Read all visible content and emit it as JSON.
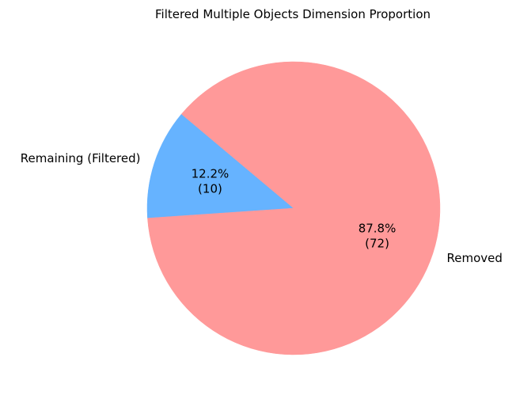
{
  "chart_data": {
    "type": "pie",
    "title": "Filtered Multiple Objects Dimension Proportion",
    "slices": [
      {
        "label": "Remaining (Filtered)",
        "value": 10,
        "percent_label": "12.2%",
        "count_label": "(10)",
        "color": "#66b3ff"
      },
      {
        "label": "Removed",
        "value": 72,
        "percent_label": "87.8%",
        "count_label": "(72)",
        "color": "#ff9999"
      }
    ],
    "start_angle_deg": 140,
    "direction": "counterclockwise"
  }
}
